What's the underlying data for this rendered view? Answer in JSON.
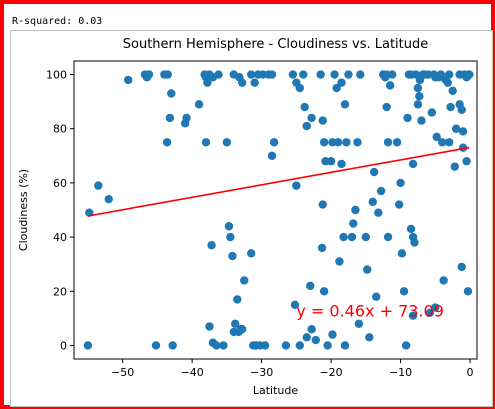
{
  "rsquared_text": "R-squared: 0.03",
  "chart_data": {
    "type": "scatter",
    "title": "Southern Hemisphere - Cloudiness vs. Latitude",
    "xlabel": "Latitude",
    "ylabel": "Cloudiness (%)",
    "xlim": [
      -57,
      1
    ],
    "ylim": [
      -5,
      105
    ],
    "xticks": [
      -50,
      -40,
      -30,
      -20,
      -10,
      0
    ],
    "yticks": [
      0,
      20,
      40,
      60,
      80,
      100
    ],
    "grid": false,
    "point_color": "#1f77b4",
    "line_color": "#ff0000",
    "regression": {
      "slope": 0.46,
      "intercept": 73.09,
      "x_range": [
        -55.0,
        -0.1
      ]
    },
    "equation_label": "y = 0.46x + 73.09",
    "points": [
      [
        -54.8,
        49
      ],
      [
        -53.5,
        59
      ],
      [
        -52.0,
        54
      ],
      [
        -49.2,
        98
      ],
      [
        -55.0,
        0
      ],
      [
        -46.8,
        100
      ],
      [
        -46.5,
        99
      ],
      [
        -46.2,
        100
      ],
      [
        -45.2,
        0
      ],
      [
        -44.0,
        100
      ],
      [
        -43.5,
        100
      ],
      [
        -43.6,
        75
      ],
      [
        -43.2,
        84
      ],
      [
        -43.0,
        93
      ],
      [
        -42.8,
        0
      ],
      [
        -41.0,
        82
      ],
      [
        -40.8,
        84
      ],
      [
        -39.0,
        89
      ],
      [
        -38.2,
        100
      ],
      [
        -38.0,
        99
      ],
      [
        -37.8,
        97
      ],
      [
        -37.5,
        100
      ],
      [
        -37.0,
        99
      ],
      [
        -36.2,
        100
      ],
      [
        -38.0,
        75
      ],
      [
        -37.2,
        37
      ],
      [
        -37.5,
        7
      ],
      [
        -37.0,
        1
      ],
      [
        -36.5,
        0
      ],
      [
        -35.5,
        0
      ],
      [
        -35.0,
        75
      ],
      [
        -34.5,
        40
      ],
      [
        -34.7,
        44
      ],
      [
        -34.2,
        33
      ],
      [
        -34.0,
        5
      ],
      [
        -33.5,
        17
      ],
      [
        -33.8,
        8
      ],
      [
        -33.3,
        5
      ],
      [
        -33.0,
        6
      ],
      [
        -32.5,
        24
      ],
      [
        -32.8,
        6
      ],
      [
        -31.5,
        34
      ],
      [
        -31.2,
        0
      ],
      [
        -30.8,
        0
      ],
      [
        -30.2,
        0
      ],
      [
        -29.5,
        0
      ],
      [
        -28.5,
        70
      ],
      [
        -28.2,
        75
      ],
      [
        -34.0,
        100
      ],
      [
        -33.2,
        99
      ],
      [
        -32.8,
        97
      ],
      [
        -31.5,
        100
      ],
      [
        -31.0,
        97
      ],
      [
        -30.5,
        100
      ],
      [
        -29.8,
        100
      ],
      [
        -29.0,
        100
      ],
      [
        -28.5,
        100
      ],
      [
        -26.5,
        0
      ],
      [
        -25.5,
        100
      ],
      [
        -25.0,
        97
      ],
      [
        -24.5,
        95
      ],
      [
        -24.0,
        100
      ],
      [
        -23.8,
        88
      ],
      [
        -23.5,
        81
      ],
      [
        -22.8,
        84
      ],
      [
        -25.0,
        59
      ],
      [
        -25.2,
        15
      ],
      [
        -24.5,
        0
      ],
      [
        -23.5,
        3
      ],
      [
        -23.0,
        22
      ],
      [
        -22.8,
        6
      ],
      [
        -22.2,
        2
      ],
      [
        -21.5,
        100
      ],
      [
        -21.2,
        83
      ],
      [
        -21.0,
        75
      ],
      [
        -21.2,
        52
      ],
      [
        -21.3,
        36
      ],
      [
        -21.0,
        20
      ],
      [
        -20.5,
        0
      ],
      [
        -20.8,
        68
      ],
      [
        -20.0,
        68
      ],
      [
        -19.5,
        100
      ],
      [
        -19.8,
        75
      ],
      [
        -19.2,
        95
      ],
      [
        -19.0,
        75
      ],
      [
        -18.5,
        67
      ],
      [
        -18.2,
        40
      ],
      [
        -18.8,
        31
      ],
      [
        -18.5,
        97
      ],
      [
        -18.0,
        89
      ],
      [
        -17.8,
        75
      ],
      [
        -17.5,
        100
      ],
      [
        -17.0,
        40
      ],
      [
        -19.8,
        4
      ],
      [
        -18.0,
        0
      ],
      [
        -16.8,
        45
      ],
      [
        -16.5,
        50
      ],
      [
        -16.2,
        75
      ],
      [
        -16.0,
        8
      ],
      [
        -15.8,
        100
      ],
      [
        -15.0,
        40
      ],
      [
        -14.8,
        28
      ],
      [
        -14.5,
        3
      ],
      [
        -14.0,
        53
      ],
      [
        -13.8,
        64
      ],
      [
        -13.5,
        18
      ],
      [
        -13.2,
        49
      ],
      [
        -12.8,
        57
      ],
      [
        -12.5,
        100
      ],
      [
        -12.2,
        99
      ],
      [
        -12.0,
        100
      ],
      [
        -12.0,
        88
      ],
      [
        -11.8,
        75
      ],
      [
        -11.5,
        96
      ],
      [
        -11.8,
        40
      ],
      [
        -11.2,
        100
      ],
      [
        -10.5,
        75
      ],
      [
        -10.2,
        52
      ],
      [
        -10.0,
        60
      ],
      [
        -9.8,
        34
      ],
      [
        -9.5,
        20
      ],
      [
        -9.2,
        0
      ],
      [
        -9.0,
        84
      ],
      [
        -8.8,
        100
      ],
      [
        -8.5,
        100
      ],
      [
        -8.2,
        67
      ],
      [
        -8.5,
        43
      ],
      [
        -8.2,
        40
      ],
      [
        -8.0,
        38
      ],
      [
        -8.2,
        11
      ],
      [
        -7.8,
        100
      ],
      [
        -7.5,
        95
      ],
      [
        -7.5,
        89
      ],
      [
        -7.3,
        92
      ],
      [
        -7.0,
        83
      ],
      [
        -7.2,
        98
      ],
      [
        -6.8,
        100
      ],
      [
        -6.5,
        100
      ],
      [
        -6.0,
        100
      ],
      [
        -5.8,
        12
      ],
      [
        -5.5,
        86
      ],
      [
        -5.2,
        100
      ],
      [
        -5.0,
        99
      ],
      [
        -4.8,
        77
      ],
      [
        -4.5,
        99
      ],
      [
        -4.2,
        100
      ],
      [
        -4.0,
        75
      ],
      [
        -3.8,
        24
      ],
      [
        -3.5,
        98
      ],
      [
        -3.2,
        97
      ],
      [
        -3.0,
        100
      ],
      [
        -3.0,
        75
      ],
      [
        -2.8,
        88
      ],
      [
        -2.5,
        94
      ],
      [
        -2.2,
        66
      ],
      [
        -2.0,
        80
      ],
      [
        -1.5,
        100
      ],
      [
        -1.5,
        89
      ],
      [
        -1.2,
        87
      ],
      [
        -1.2,
        29
      ],
      [
        -1.0,
        79
      ],
      [
        -1.0,
        73
      ],
      [
        -0.8,
        100
      ],
      [
        -0.5,
        99
      ],
      [
        -0.5,
        68
      ],
      [
        -0.3,
        20
      ],
      [
        -0.2,
        100
      ],
      [
        -0.1,
        100
      ],
      [
        -5.0,
        14
      ]
    ]
  }
}
